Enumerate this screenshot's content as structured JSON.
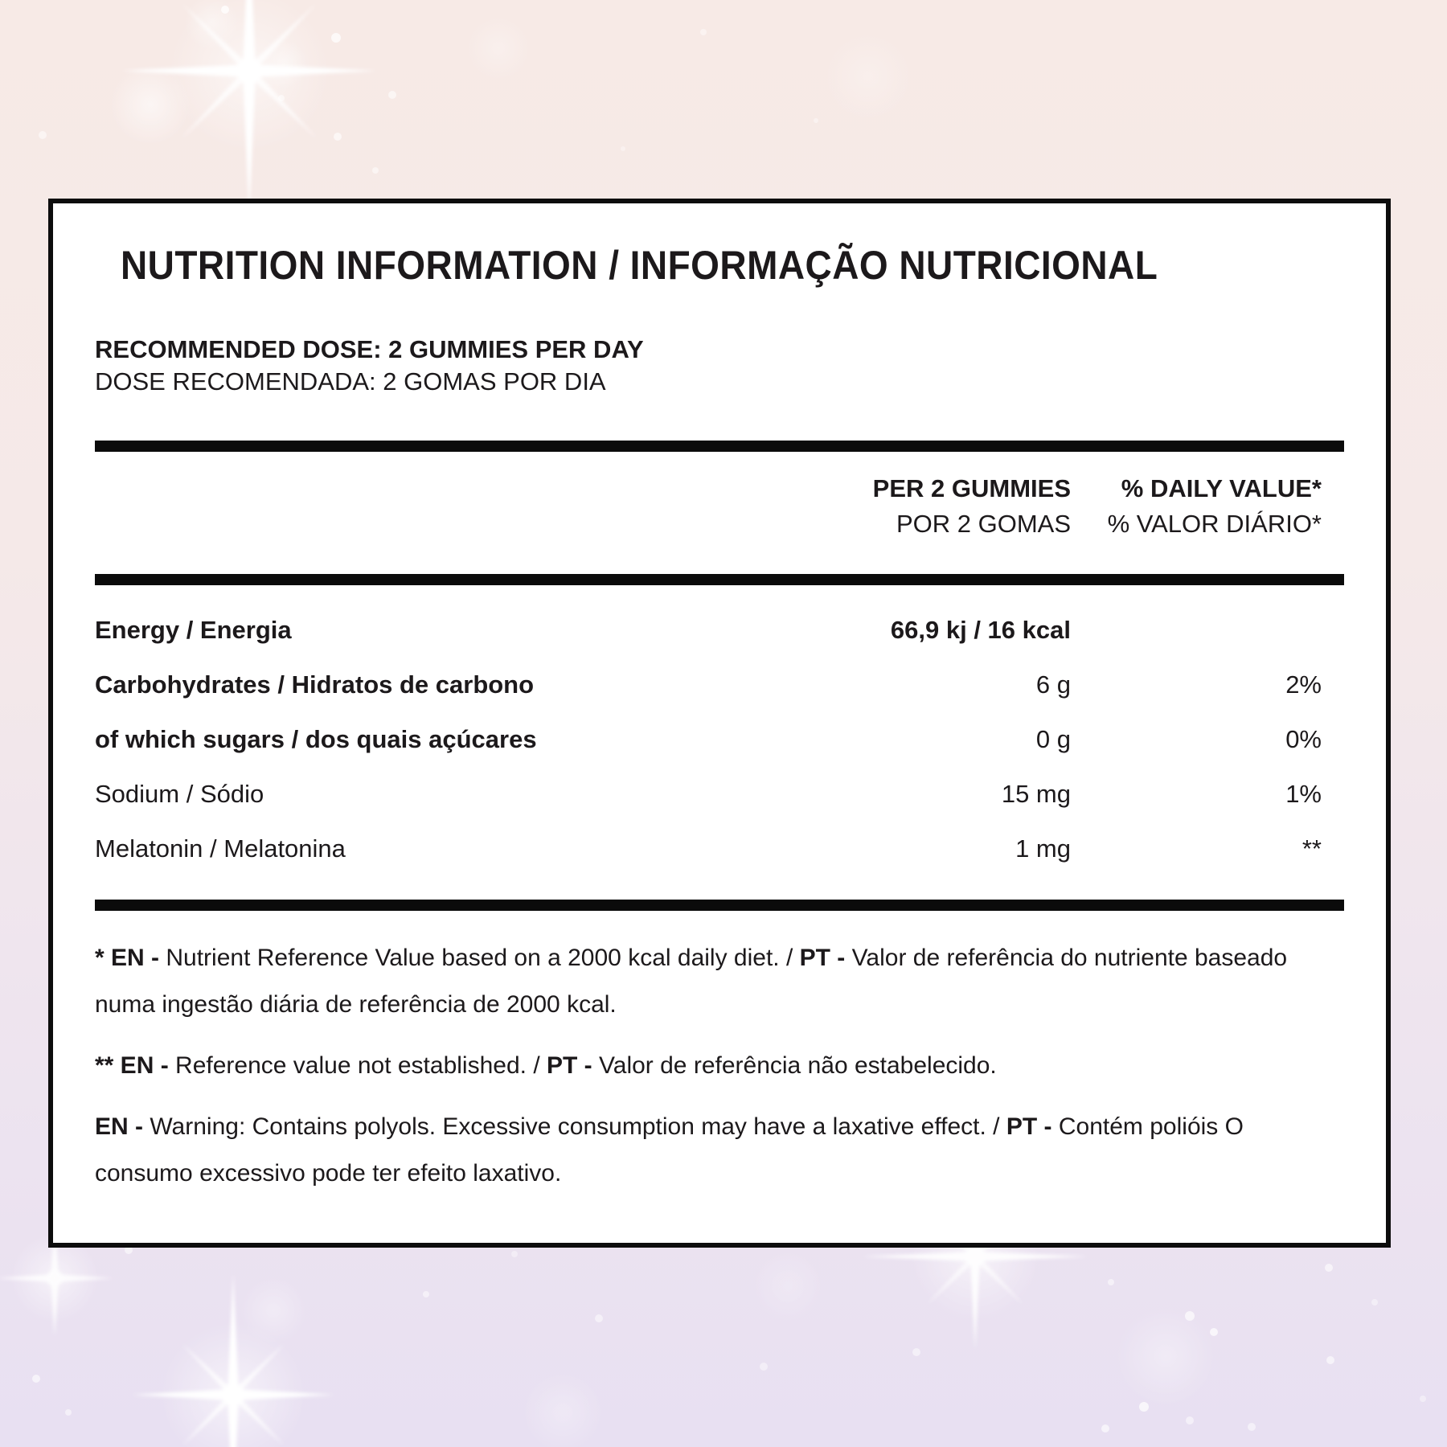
{
  "title": "NUTRITION INFORMATION / INFORMAÇÃO NUTRICIONAL",
  "dose": {
    "en": "RECOMMENDED DOSE: 2 GUMMIES PER DAY",
    "pt": "DOSE RECOMENDADA: 2 GOMAS POR DIA"
  },
  "table": {
    "columns": {
      "amount": {
        "en": "PER 2 GUMMIES",
        "pt": "POR 2 GOMAS"
      },
      "daily_value": {
        "en": "% DAILY VALUE*",
        "pt": "% VALOR DIÁRIO*"
      }
    },
    "rows": [
      {
        "name": "Energy / Energia",
        "amount": "66,9 kj / 16 kcal",
        "daily_value": "",
        "name_bold": true,
        "amount_bold": true
      },
      {
        "name": "Carbohydrates / Hidratos de carbono",
        "amount": "6 g",
        "daily_value": "2%",
        "name_bold": true,
        "amount_bold": false
      },
      {
        "name": "of which sugars / dos quais açúcares",
        "amount": "0 g",
        "daily_value": "0%",
        "name_bold": true,
        "amount_bold": false
      },
      {
        "name": "Sodium / Sódio",
        "amount": "15 mg",
        "daily_value": "1%",
        "name_bold": false,
        "amount_bold": false
      },
      {
        "name": "Melatonin / Melatonina",
        "amount": "1 mg",
        "daily_value": "**",
        "name_bold": false,
        "amount_bold": false
      }
    ]
  },
  "footnotes": [
    {
      "segments": [
        {
          "text": "* EN - ",
          "bold": true
        },
        {
          "text": "Nutrient Reference Value based on a 2000 kcal daily diet. / ",
          "bold": false
        },
        {
          "text": "PT - ",
          "bold": true
        },
        {
          "text": "Valor de referência do nutriente baseado numa ingestão diária de referência de 2000 kcal.",
          "bold": false
        }
      ]
    },
    {
      "segments": [
        {
          "text": "** EN - ",
          "bold": true
        },
        {
          "text": "Reference value not established. / ",
          "bold": false
        },
        {
          "text": "PT - ",
          "bold": true
        },
        {
          "text": "Valor de referência não estabelecido.",
          "bold": false
        }
      ]
    },
    {
      "segments": [
        {
          "text": "EN - ",
          "bold": true
        },
        {
          "text": "Warning: Contains polyols. Excessive consumption may have a laxative effect. / ",
          "bold": false
        },
        {
          "text": "PT - ",
          "bold": true
        },
        {
          "text": "Contém polióis O consumo excessivo pode ter efeito laxativo.",
          "bold": false
        }
      ]
    }
  ],
  "colors": {
    "panel_bg": "#ffffff",
    "border": "#0d0d0d",
    "text": "#1c191b",
    "bg_top": "#f7eae6",
    "bg_bottom": "#e8e0f2"
  }
}
